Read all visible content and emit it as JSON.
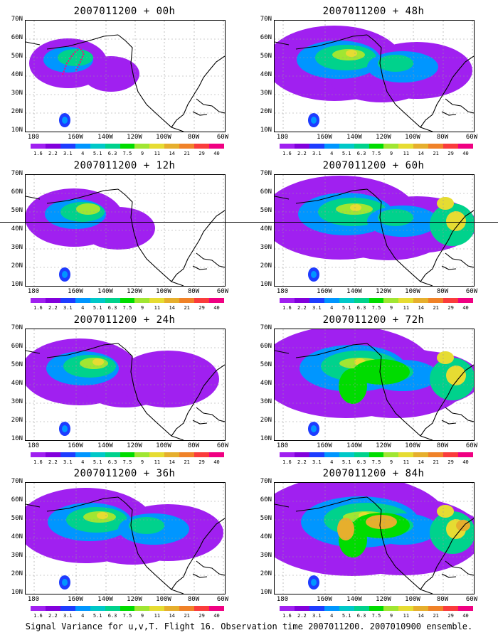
{
  "panels": [
    {
      "title": "2007011200 + 00h",
      "level": 0
    },
    {
      "title": "2007011200 + 12h",
      "level": 1
    },
    {
      "title": "2007011200 + 24h",
      "level": 2
    },
    {
      "title": "2007011200 + 36h",
      "level": 3
    },
    {
      "title": "2007011200 + 48h",
      "level": 3
    },
    {
      "title": "2007011200 + 60h",
      "level": 4
    },
    {
      "title": "2007011200 + 72h",
      "level": 5
    },
    {
      "title": "2007011200 + 84h",
      "level": 6
    }
  ],
  "y_ticks": [
    "70N",
    "60N",
    "50N",
    "40N",
    "30N",
    "20N",
    "10N"
  ],
  "x_ticks": [
    "180",
    "160W",
    "140W",
    "120W",
    "100W",
    "80W",
    "60W"
  ],
  "colorbar": {
    "labels": [
      "1.6",
      "2.2",
      "3.1",
      "4",
      "5.1",
      "6.3",
      "7.5",
      "9",
      "11",
      "14",
      "21",
      "29",
      "40"
    ],
    "colors": [
      "#a020f0",
      "#8200dc",
      "#1e3cff",
      "#0096ff",
      "#00c8c8",
      "#00d28c",
      "#00dc00",
      "#a0e632",
      "#e6dc32",
      "#e6af2d",
      "#f08228",
      "#fa3c3c",
      "#f00082"
    ]
  },
  "caption": "Signal Variance for u,v,T. Flight 16. Observation time 2007011200. 2007010900 ensemble."
}
